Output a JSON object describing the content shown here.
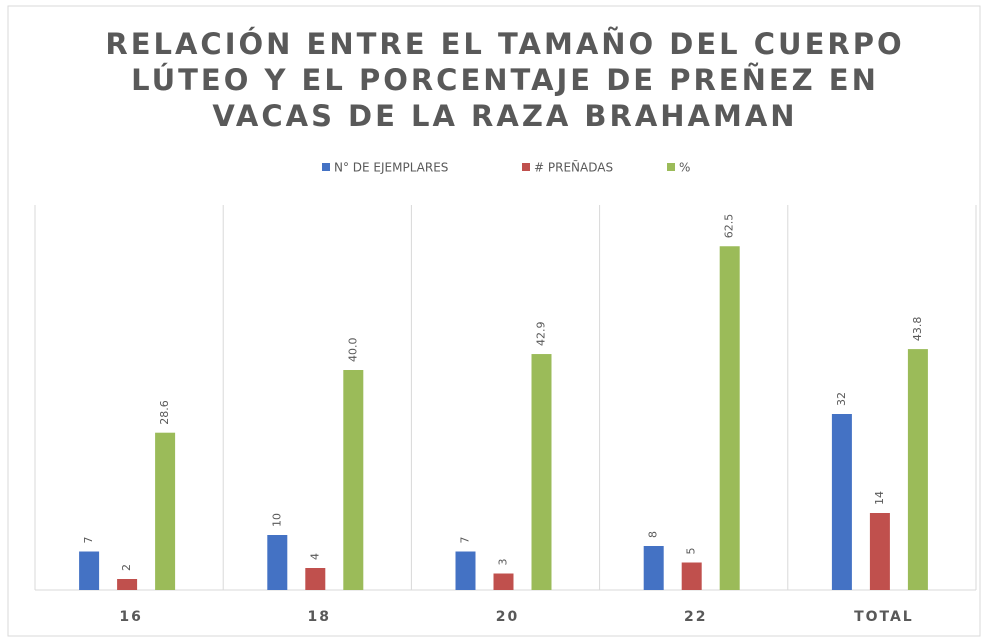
{
  "chart_data": {
    "type": "bar",
    "title": [
      "RELACIÓN ENTRE EL TAMAÑO DEL CUERPO",
      "LÚTEO Y EL PORCENTAJE DE PREÑEZ EN",
      "VACAS DE LA RAZA BRAHAMAN"
    ],
    "categories": [
      "16",
      "18",
      "20",
      "22",
      "TOTAL"
    ],
    "series": [
      {
        "name": "N° DE EJEMPLARES",
        "color": "#4472c4",
        "values": [
          7,
          10,
          7,
          8,
          32
        ]
      },
      {
        "name": "# PREÑADAS",
        "color": "#c0504d",
        "values": [
          2,
          4,
          3,
          5,
          14
        ]
      },
      {
        "name": "%",
        "color": "#9bbb59",
        "values": [
          28.6,
          40.0,
          42.9,
          62.5,
          43.8
        ],
        "value_labels": [
          "28.6",
          "40.0",
          "42.9",
          "62.5",
          "43.8"
        ]
      }
    ],
    "ylim": [
      0,
      70
    ],
    "legend": "top"
  }
}
